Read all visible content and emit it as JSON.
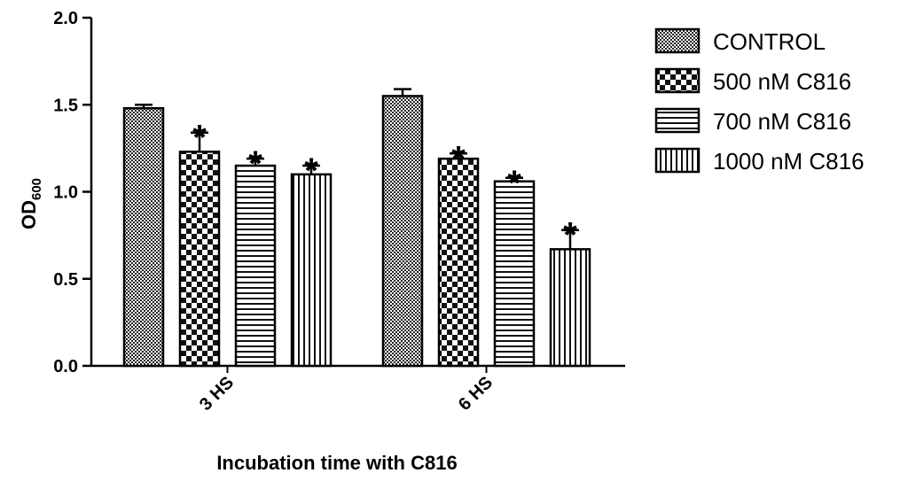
{
  "chart_data": {
    "type": "bar",
    "title": "",
    "xlabel": "Incubation time with C816",
    "ylabel": "OD",
    "ylabel_subscript": "600",
    "ylim": [
      0,
      2.0
    ],
    "yticks": [
      "0.0",
      "0.5",
      "1.0",
      "1.5",
      "2.0"
    ],
    "categories": [
      "3 HS",
      "6 HS"
    ],
    "series": [
      {
        "name": "CONTROL",
        "values": [
          1.48,
          1.55
        ],
        "errors": [
          0.02,
          0.04
        ],
        "significant": [
          false,
          false
        ],
        "pattern": "checker"
      },
      {
        "name": "500 nM C816",
        "values": [
          1.23,
          1.19
        ],
        "errors": [
          0.11,
          0.03
        ],
        "significant": [
          true,
          true
        ],
        "pattern": "bigchecker"
      },
      {
        "name": "700 nM C816",
        "values": [
          1.15,
          1.06
        ],
        "errors": [
          0.04,
          0.02
        ],
        "significant": [
          true,
          true
        ],
        "pattern": "horizontal"
      },
      {
        "name": "1000 nM C816",
        "values": [
          1.1,
          0.67
        ],
        "errors": [
          0.05,
          0.11
        ],
        "significant": [
          true,
          true
        ],
        "pattern": "vertical"
      }
    ],
    "significance_marker": "*",
    "legend": "right",
    "grid": false
  }
}
